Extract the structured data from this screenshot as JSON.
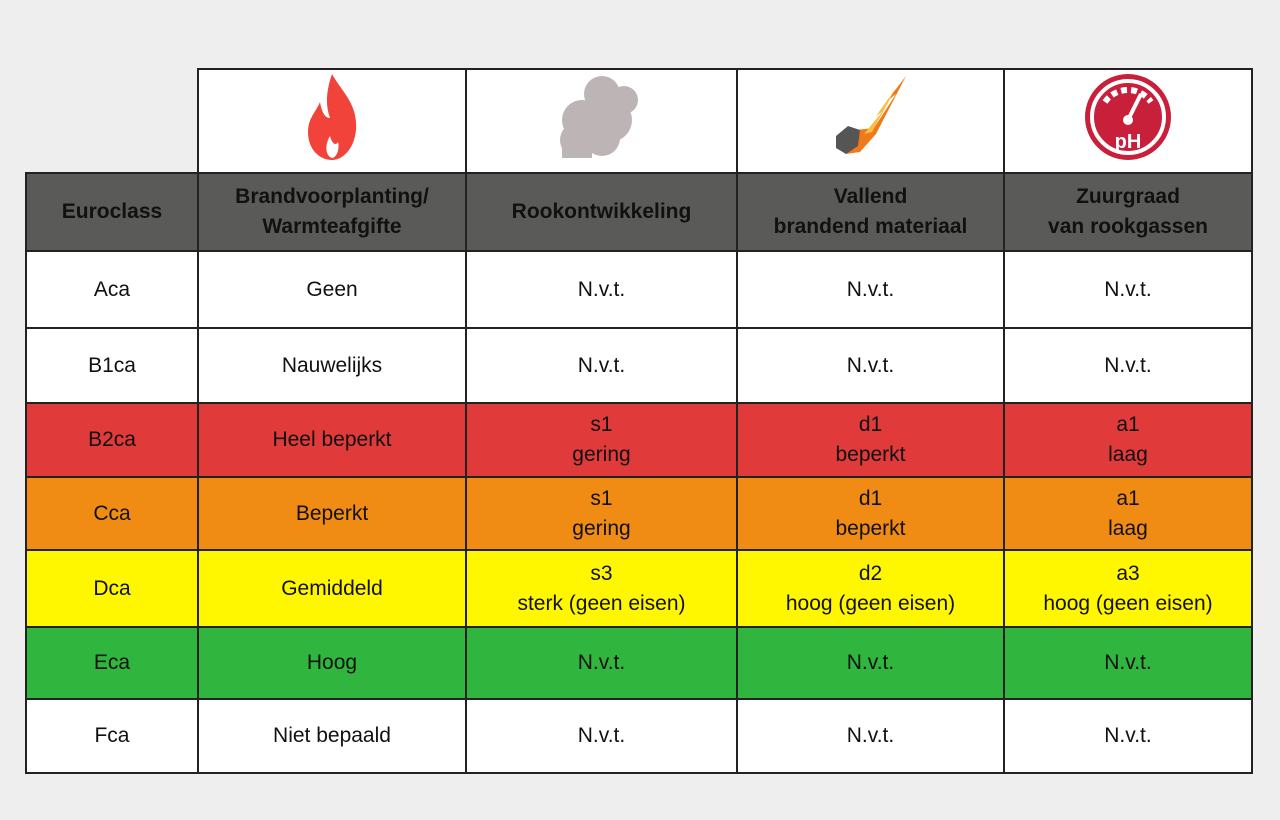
{
  "icons": [
    "flame-icon",
    "smoke-icon",
    "falling-meteor-icon",
    "ph-gauge-icon"
  ],
  "ph_label": "pH",
  "headers": [
    "Euroclass",
    "Brandvoorplanting/ Warmteafgifte",
    "Rookontwikkeling",
    "Vallend brandend materiaal",
    "Zuurgraad van rookgassen"
  ],
  "header_lines": {
    "h1a": "Brandvoorplanting/",
    "h1b": "Warmteafgifte",
    "h3a": "Vallend",
    "h3b": "brandend materiaal",
    "h4a": "Zuurgraad",
    "h4b": "van rookgassen"
  },
  "rows": [
    {
      "cls": "Aca",
      "fire": "Geen",
      "smoke": [
        "N.v.t."
      ],
      "drops": [
        "N.v.t."
      ],
      "acid": [
        "N.v.t."
      ],
      "color": "#ffffff"
    },
    {
      "cls": "B1ca",
      "fire": "Nauwelijks",
      "smoke": [
        "N.v.t."
      ],
      "drops": [
        "N.v.t."
      ],
      "acid": [
        "N.v.t."
      ],
      "color": "#ffffff"
    },
    {
      "cls": "B2ca",
      "fire": "Heel beperkt",
      "smoke": [
        "s1",
        "gering"
      ],
      "drops": [
        "d1",
        "beperkt"
      ],
      "acid": [
        "a1",
        "laag"
      ],
      "color": "#e03a3a"
    },
    {
      "cls": "Cca",
      "fire": "Beperkt",
      "smoke": [
        "s1",
        "gering"
      ],
      "drops": [
        "d1",
        "beperkt"
      ],
      "acid": [
        "a1",
        "laag"
      ],
      "color": "#f08c14"
    },
    {
      "cls": "Dca",
      "fire": "Gemiddeld",
      "smoke": [
        "s3",
        "sterk (geen eisen)"
      ],
      "drops": [
        "d2",
        "hoog (geen eisen)"
      ],
      "acid": [
        "a3",
        "hoog (geen eisen)"
      ],
      "color": "#fff700"
    },
    {
      "cls": "Eca",
      "fire": "Hoog",
      "smoke": [
        "N.v.t."
      ],
      "drops": [
        "N.v.t."
      ],
      "acid": [
        "N.v.t."
      ],
      "color": "#30b63e"
    },
    {
      "cls": "Fca",
      "fire": "Niet bepaald",
      "smoke": [
        "N.v.t."
      ],
      "drops": [
        "N.v.t."
      ],
      "acid": [
        "N.v.t."
      ],
      "color": "#ffffff"
    }
  ]
}
